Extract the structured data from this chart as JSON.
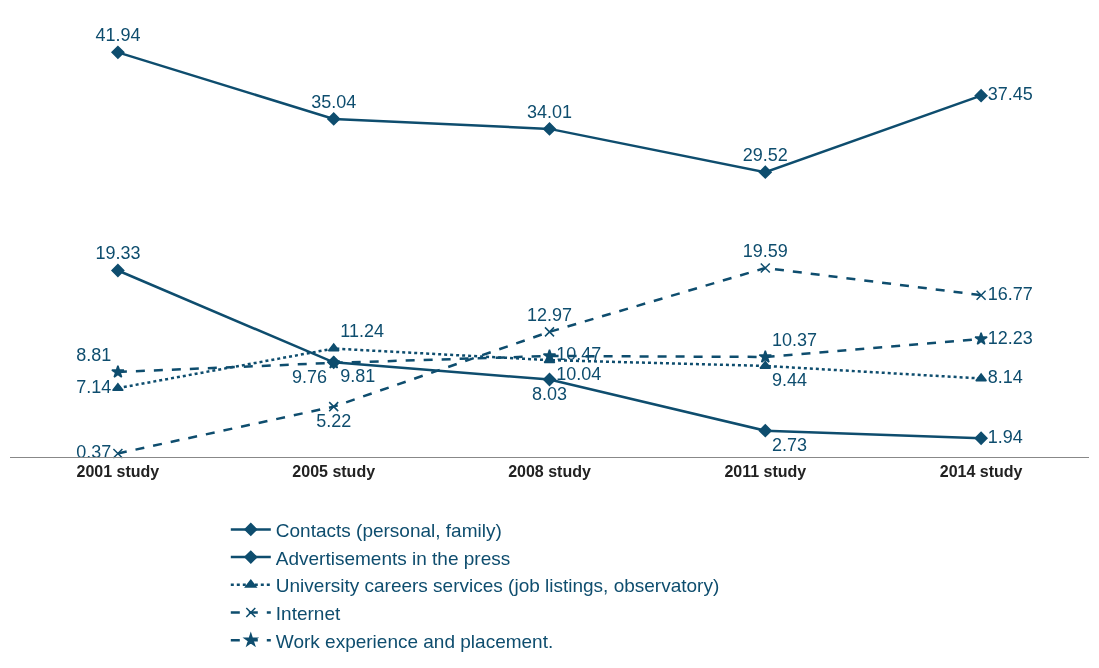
{
  "chart_data": {
    "type": "line",
    "categories": [
      "2001 study",
      "2005 study",
      "2008 study",
      "2011 study",
      "2014 study"
    ],
    "series": [
      {
        "name": "Contacts (personal, family)",
        "color": "#0e4d6e",
        "values": [
          41.94,
          35.04,
          34.01,
          29.52,
          37.45
        ],
        "marker": "diamond",
        "line_style": "solid"
      },
      {
        "name": "Advertisements in the press",
        "color": "#0e4d6e",
        "values": [
          19.33,
          9.81,
          8.03,
          2.73,
          1.94
        ],
        "marker": "diamond",
        "line_style": "solid"
      },
      {
        "name": "University careers services (job listings, observatory)",
        "color": "#0e4d6e",
        "values": [
          7.14,
          11.24,
          10.04,
          9.44,
          8.14
        ],
        "marker": "triangle",
        "line_style": "dotted"
      },
      {
        "name": "Internet",
        "color": "#0e4d6e",
        "values": [
          0.37,
          5.22,
          12.97,
          19.59,
          16.77
        ],
        "marker": "cross",
        "line_style": "dashed"
      },
      {
        "name": "Work experience and placement.",
        "color": "#0e4d6e",
        "values": [
          8.81,
          9.76,
          10.47,
          10.37,
          12.23
        ],
        "marker": "star",
        "line_style": "dashed"
      }
    ],
    "data_labels": true,
    "legend": "bottom",
    "grid": false
  }
}
